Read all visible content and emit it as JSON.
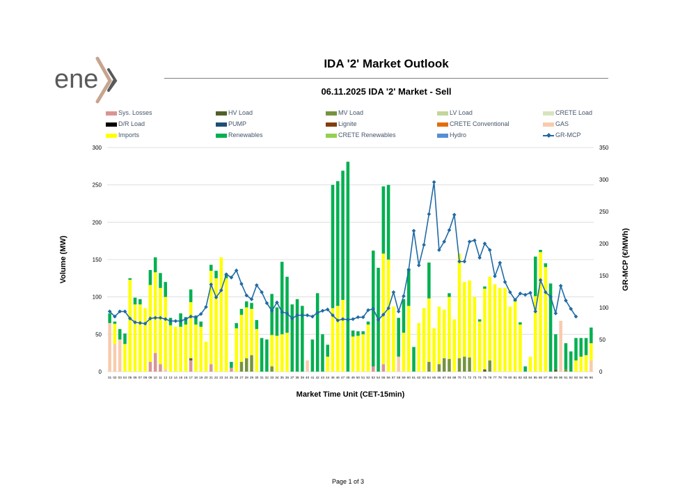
{
  "header": {
    "title": "IDA '2' Market Outlook",
    "subtitle": "06.11.2025  IDA '2' Market - Sell"
  },
  "logo": {
    "text": "enex"
  },
  "footer": {
    "page": "Page 1 of 3"
  },
  "legend": [
    {
      "name": "Sys. Losses",
      "color": "#d99594",
      "kind": "bar"
    },
    {
      "name": "HV Load",
      "color": "#4f6228",
      "kind": "bar"
    },
    {
      "name": "MV Load",
      "color": "#77933c",
      "kind": "bar"
    },
    {
      "name": "LV Load",
      "color": "#c3d69b",
      "kind": "bar"
    },
    {
      "name": "CRETE Load",
      "color": "#d7e4bd",
      "kind": "bar"
    },
    {
      "name": "D/R Load",
      "color": "#000000",
      "kind": "bar"
    },
    {
      "name": "PUMP",
      "color": "#1f4e79",
      "kind": "bar"
    },
    {
      "name": "Lignite",
      "color": "#843c0c",
      "kind": "bar"
    },
    {
      "name": "CRETE Conventional",
      "color": "#e46c0a",
      "kind": "bar"
    },
    {
      "name": "GAS",
      "color": "#f8cbad",
      "kind": "bar"
    },
    {
      "name": "Imports",
      "color": "#ffff00",
      "kind": "bar"
    },
    {
      "name": "Renewables",
      "color": "#00b050",
      "kind": "bar"
    },
    {
      "name": "CRETE Renewables",
      "color": "#92d050",
      "kind": "bar"
    },
    {
      "name": "Hydro",
      "color": "#558ed5",
      "kind": "bar"
    },
    {
      "name": "GR-MCP",
      "color": "#1f6aa5",
      "kind": "line"
    }
  ],
  "chart_data": {
    "type": "bar",
    "stacked": true,
    "xlabel": "Market Time Unit (CET-15min)",
    "ylabel": "Volume (MW)",
    "y2label": "GR-MCP (€/MWh)",
    "ylim": [
      0,
      300
    ],
    "yticks": [
      0,
      50,
      100,
      150,
      200,
      250,
      300
    ],
    "y2lim": [
      0,
      350
    ],
    "y2ticks": [
      0,
      50,
      100,
      150,
      200,
      250,
      300,
      350
    ],
    "grid": true,
    "legend_position": "top",
    "categories": [
      "01",
      "02",
      "03",
      "04",
      "05",
      "06",
      "07",
      "08",
      "09",
      "10",
      "11",
      "12",
      "13",
      "14",
      "15",
      "16",
      "17",
      "18",
      "19",
      "20",
      "21",
      "22",
      "23",
      "24",
      "25",
      "26",
      "27",
      "28",
      "29",
      "30",
      "31",
      "32",
      "33",
      "34",
      "35",
      "36",
      "37",
      "38",
      "39",
      "40",
      "41",
      "42",
      "43",
      "44",
      "45",
      "46",
      "47",
      "48",
      "49",
      "50",
      "51",
      "52",
      "53",
      "54",
      "55",
      "56",
      "57",
      "58",
      "59",
      "60",
      "61",
      "62",
      "63",
      "64",
      "65",
      "66",
      "67",
      "68",
      "69",
      "70",
      "71",
      "72",
      "73",
      "74",
      "75",
      "76",
      "77",
      "78",
      "79",
      "80",
      "81",
      "82",
      "83",
      "84",
      "85",
      "86",
      "87",
      "88",
      "89",
      "90",
      "91",
      "92",
      "93",
      "94",
      "95",
      "96"
    ],
    "series": [
      {
        "name": "Sys. Losses",
        "color": "#d99594",
        "values": [
          0,
          0,
          0,
          0,
          0,
          0,
          0,
          0,
          13,
          25,
          10,
          0,
          0,
          0,
          0,
          0,
          15,
          0,
          0,
          0,
          10,
          0,
          0,
          0,
          5,
          0,
          0,
          0,
          0,
          0,
          0,
          0,
          0,
          0,
          0,
          0,
          0,
          0,
          0,
          0,
          0,
          0,
          0,
          0,
          0,
          0,
          0,
          0,
          0,
          0,
          0,
          0,
          7,
          0,
          10,
          0,
          0,
          0,
          0,
          0,
          0,
          0,
          0,
          0,
          0,
          0,
          0,
          0,
          0,
          0,
          0,
          0,
          0,
          0,
          0,
          0,
          0,
          0,
          0,
          0,
          0,
          0,
          0,
          0,
          0,
          0,
          0,
          0,
          0,
          0,
          0,
          0,
          0,
          0,
          0,
          0
        ]
      },
      {
        "name": "HV Load",
        "color": "#4f6228",
        "values": [
          0,
          0,
          0,
          0,
          0,
          0,
          0,
          0,
          0,
          0,
          0,
          0,
          0,
          0,
          0,
          0,
          3,
          0,
          0,
          0,
          0,
          0,
          0,
          0,
          0,
          0,
          0,
          0,
          0,
          0,
          0,
          0,
          0,
          0,
          0,
          0,
          0,
          0,
          0,
          0,
          0,
          0,
          0,
          0,
          0,
          0,
          0,
          0,
          0,
          0,
          0,
          0,
          0,
          0,
          0,
          0,
          0,
          0,
          0,
          0,
          0,
          0,
          0,
          0,
          0,
          0,
          0,
          0,
          0,
          0,
          0,
          0,
          0,
          0,
          3,
          0,
          0,
          0,
          0,
          0,
          0,
          0,
          0,
          0,
          0,
          0,
          0,
          0,
          3,
          0,
          0,
          0,
          0,
          0,
          0,
          0
        ]
      },
      {
        "name": "MV Load",
        "color": "#77933c",
        "values": [
          0,
          0,
          0,
          0,
          0,
          0,
          0,
          0,
          0,
          0,
          0,
          0,
          0,
          0,
          0,
          0,
          0,
          0,
          0,
          0,
          0,
          0,
          0,
          0,
          0,
          0,
          13,
          18,
          22,
          0,
          0,
          0,
          7,
          0,
          0,
          0,
          0,
          0,
          0,
          0,
          0,
          0,
          0,
          0,
          0,
          0,
          0,
          0,
          0,
          0,
          0,
          0,
          0,
          0,
          0,
          0,
          0,
          0,
          0,
          0,
          0,
          0,
          0,
          13,
          0,
          10,
          18,
          17,
          0,
          18,
          20,
          19,
          0,
          0,
          0,
          15,
          0,
          0,
          0,
          0,
          0,
          0,
          0,
          0,
          0,
          0,
          0,
          0,
          0,
          0,
          3,
          0,
          0,
          0,
          0,
          0
        ]
      },
      {
        "name": "GAS",
        "color": "#f8cbad",
        "values": [
          65,
          37,
          43,
          0,
          0,
          0,
          0,
          0,
          0,
          0,
          0,
          3,
          0,
          0,
          0,
          0,
          0,
          0,
          0,
          0,
          0,
          0,
          0,
          0,
          0,
          0,
          0,
          0,
          0,
          0,
          0,
          0,
          0,
          0,
          0,
          0,
          0,
          0,
          0,
          15,
          0,
          0,
          0,
          0,
          0,
          0,
          0,
          0,
          0,
          0,
          0,
          0,
          0,
          0,
          0,
          0,
          0,
          20,
          0,
          0,
          0,
          0,
          0,
          0,
          0,
          0,
          0,
          0,
          0,
          0,
          0,
          0,
          0,
          0,
          0,
          0,
          0,
          0,
          0,
          0,
          0,
          0,
          0,
          0,
          0,
          0,
          0,
          0,
          0,
          68,
          0,
          0,
          0,
          0,
          0,
          15
        ]
      },
      {
        "name": "Imports",
        "color": "#ffff00",
        "values": [
          0,
          27,
          0,
          37,
          123,
          90,
          90,
          85,
          103,
          108,
          102,
          97,
          62,
          60,
          60,
          63,
          75,
          63,
          60,
          40,
          125,
          125,
          153,
          125,
          0,
          58,
          63,
          68,
          62,
          57,
          0,
          0,
          42,
          48,
          50,
          52,
          0,
          0,
          0,
          0,
          0,
          0,
          0,
          20,
          85,
          88,
          96,
          0,
          47,
          48,
          50,
          63,
          0,
          0,
          148,
          150,
          87,
          0,
          52,
          88,
          0,
          65,
          85,
          85,
          58,
          77,
          65,
          83,
          70,
          140,
          100,
          103,
          100,
          67,
          108,
          112,
          117,
          112,
          112,
          87,
          94,
          63,
          0,
          20,
          101,
          160,
          140,
          0,
          0,
          0,
          0,
          0,
          15,
          20,
          22,
          23
        ]
      },
      {
        "name": "Renewables",
        "color": "#00b050",
        "values": [
          13,
          3,
          14,
          14,
          2,
          9,
          7,
          0,
          20,
          20,
          20,
          20,
          10,
          0,
          18,
          10,
          17,
          12,
          7,
          0,
          8,
          10,
          0,
          5,
          8,
          7,
          8,
          8,
          8,
          12,
          45,
          43,
          55,
          38,
          97,
          75,
          90,
          97,
          88,
          0,
          43,
          105,
          50,
          16,
          165,
          167,
          173,
          281,
          8,
          6,
          4,
          4,
          155,
          139,
          90,
          100,
          0,
          52,
          45,
          50,
          33,
          0,
          0,
          48,
          0,
          0,
          0,
          5,
          0,
          0,
          0,
          0,
          0,
          3,
          3,
          0,
          0,
          0,
          0,
          0,
          3,
          3,
          7,
          0,
          53,
          3,
          5,
          118,
          47,
          0,
          35,
          27,
          30,
          25,
          23,
          21
        ]
      }
    ],
    "line": {
      "name": "GR-MCP",
      "color": "#1f6aa5",
      "axis": "right",
      "values": [
        94,
        86,
        94,
        94,
        83,
        77,
        76,
        75,
        83,
        84,
        84,
        82,
        79,
        79,
        79,
        82,
        86,
        85,
        90,
        101,
        136,
        116,
        127,
        152,
        147,
        158,
        137,
        119,
        113,
        135,
        124,
        107,
        95,
        108,
        93,
        91,
        83,
        88,
        88,
        88,
        86,
        92,
        95,
        97,
        88,
        80,
        82,
        81,
        82,
        85,
        85,
        96,
        98,
        81,
        89,
        99,
        124,
        94,
        118,
        159,
        220,
        166,
        198,
        246,
        296,
        190,
        203,
        221,
        245,
        172,
        172,
        203,
        205,
        178,
        200,
        190,
        149,
        170,
        140,
        124,
        112,
        122,
        120,
        123,
        94,
        143,
        124,
        117,
        91,
        134,
        111,
        98,
        86,
        0,
        0,
        0
      ]
    }
  }
}
